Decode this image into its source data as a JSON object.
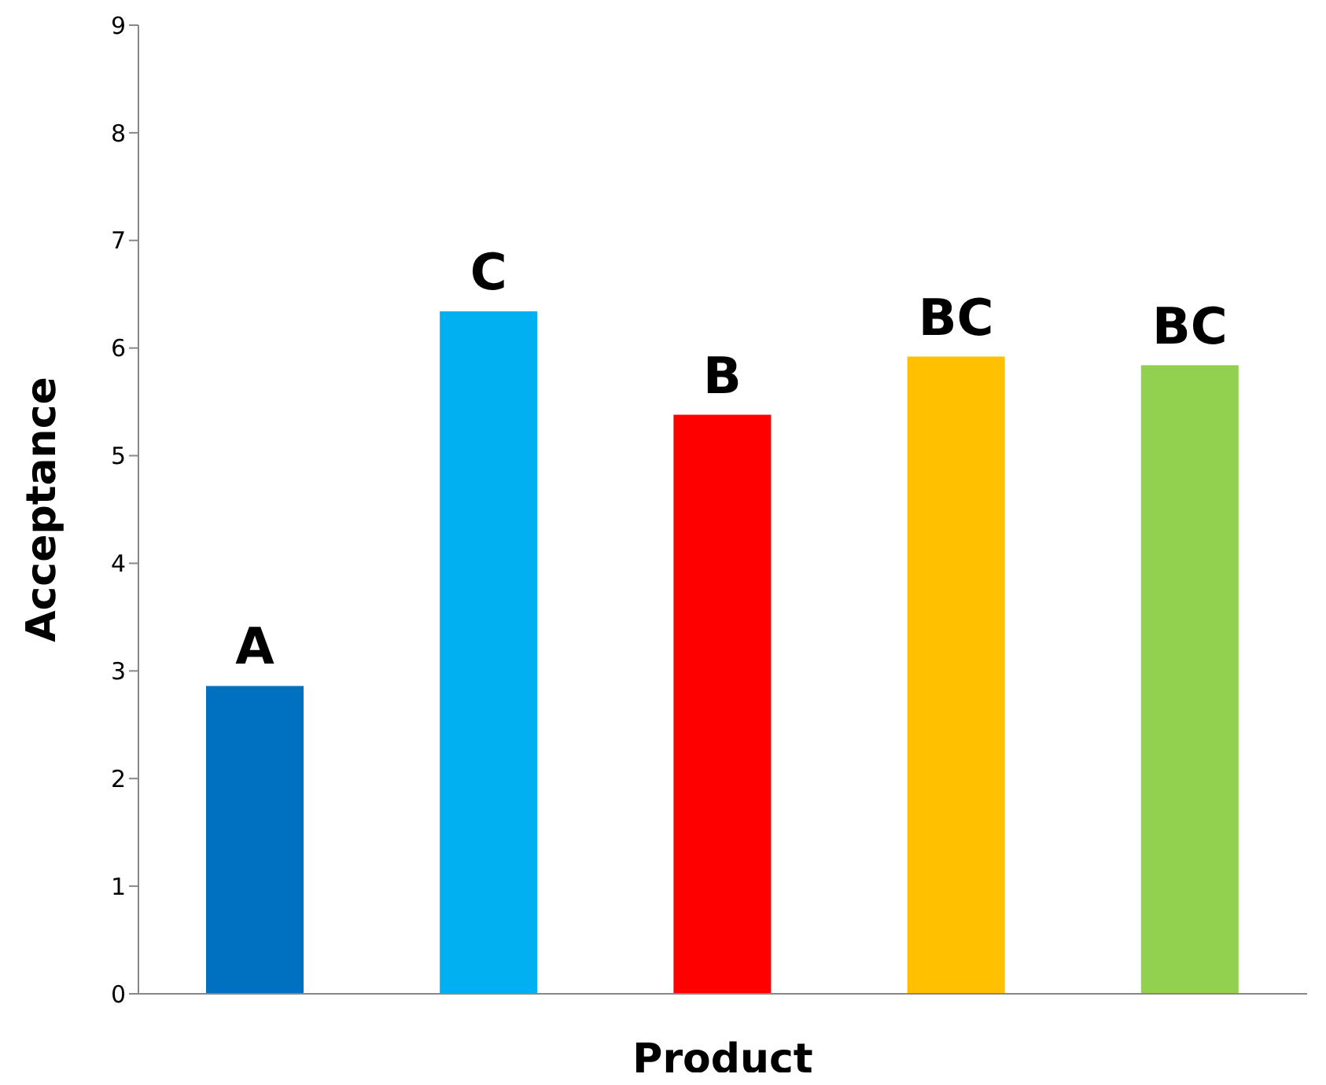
{
  "chart_data": {
    "type": "bar",
    "xlabel": "Product",
    "ylabel": "Acceptance",
    "categories": [
      null,
      null,
      null,
      null,
      null
    ],
    "values": [
      2.86,
      6.34,
      5.38,
      5.92,
      5.84
    ],
    "colors": [
      "#0070c0",
      "#00b0f0",
      "#ff0000",
      "#ffc000",
      "#92d050"
    ],
    "value_labels": [
      "A",
      "C",
      "B",
      "BC",
      "BC"
    ],
    "ylim": [
      0,
      9
    ],
    "yticks": [
      0,
      1,
      2,
      3,
      4,
      5,
      6,
      7,
      8,
      9
    ],
    "tick_labels": "y",
    "grid": false,
    "legend": false
  }
}
